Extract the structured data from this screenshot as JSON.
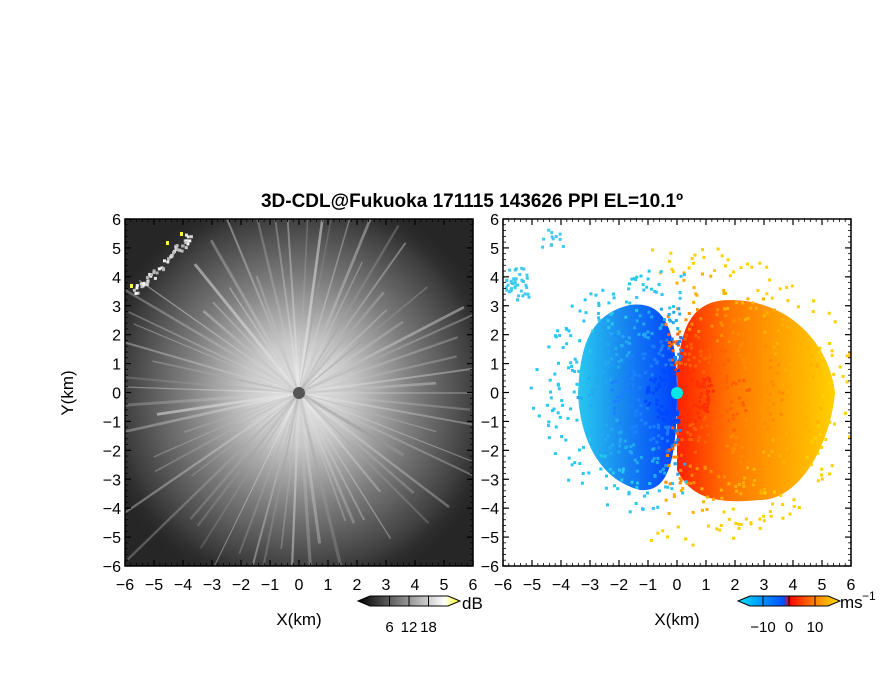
{
  "chart_data": [
    {
      "type": "heatmap",
      "title": "3D-CDL@Fukuoka 171115 143626 PPI EL=10.1º",
      "xlabel": "X(km)",
      "ylabel": "Y(km)",
      "xlim": [
        -6,
        6
      ],
      "ylim": [
        -6,
        6
      ],
      "xticks": [
        -6,
        -5,
        -4,
        -3,
        -2,
        -1,
        0,
        1,
        2,
        3,
        4,
        5,
        6
      ],
      "yticks": [
        -6,
        -5,
        -4,
        -3,
        -2,
        -1,
        0,
        1,
        2,
        3,
        4,
        5,
        6
      ],
      "tick_labels": [
        "−6",
        "−5",
        "−4",
        "−3",
        "−2",
        "−1",
        "0",
        "1",
        "2",
        "3",
        "4",
        "5",
        "6"
      ],
      "colorbar": {
        "unit": "dB",
        "ticks": [
          6,
          12,
          18
        ],
        "tick_labels": [
          "6",
          "12",
          "18"
        ],
        "range": [
          0,
          24
        ],
        "colors": [
          "#000000",
          "#ffffff",
          "#ffff00"
        ]
      },
      "grid": false
    },
    {
      "type": "heatmap",
      "xlabel": "X(km)",
      "xlim": [
        -6,
        6
      ],
      "ylim": [
        -6,
        6
      ],
      "xticks": [
        -6,
        -5,
        -4,
        -3,
        -2,
        -1,
        0,
        1,
        2,
        3,
        4,
        5,
        6
      ],
      "yticks": [
        -6,
        -5,
        -4,
        -3,
        -2,
        -1,
        0,
        1,
        2,
        3,
        4,
        5,
        6
      ],
      "tick_labels": [
        "−6",
        "−5",
        "−4",
        "−3",
        "−2",
        "−1",
        "0",
        "1",
        "2",
        "3",
        "4",
        "5",
        "6"
      ],
      "colorbar": {
        "unit": "ms",
        "unit_superscript": "−1",
        "ticks": [
          -10,
          0,
          10
        ],
        "tick_labels": [
          "−10",
          "0",
          "10"
        ],
        "range": [
          -15,
          15
        ],
        "colors": [
          "#00e0ff",
          "#0050ff",
          "#ff0000",
          "#ff8000",
          "#ffe000"
        ]
      },
      "grid": false
    }
  ]
}
